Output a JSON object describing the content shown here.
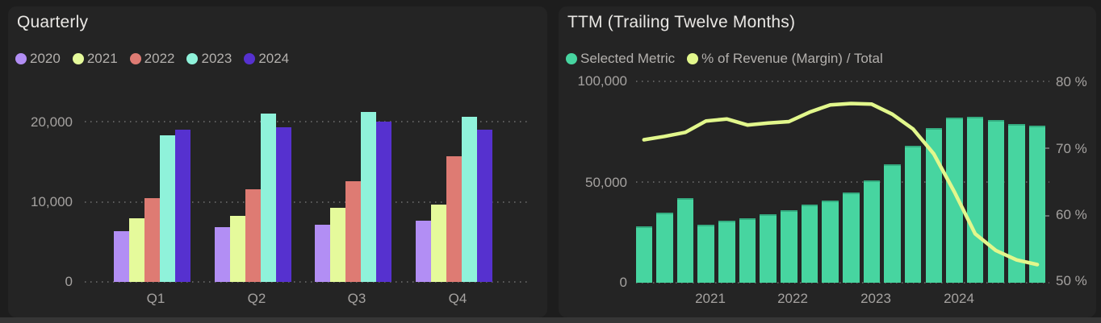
{
  "page": {
    "background": "#1d1d1d",
    "panel_background": "#242424",
    "footer_strip_color": "#363636"
  },
  "left_panel": {
    "title": "Quarterly",
    "legend": [
      {
        "label": "2020",
        "color": "#b28ef4"
      },
      {
        "label": "2021",
        "color": "#e5fa9b"
      },
      {
        "label": "2022",
        "color": "#de7b73"
      },
      {
        "label": "2023",
        "color": "#8ff2da"
      },
      {
        "label": "2024",
        "color": "#5631cf"
      }
    ]
  },
  "right_panel": {
    "title": "TTM (Trailing Twelve Months)",
    "legend": [
      {
        "label": "Selected Metric",
        "color": "#47d5a0"
      },
      {
        "label": "% of Revenue (Margin) / Total",
        "color": "#e2f78c"
      }
    ]
  },
  "chart_data": [
    {
      "panel": "left",
      "type": "bar",
      "title": "Quarterly",
      "categories": [
        "Q1",
        "Q2",
        "Q3",
        "Q4"
      ],
      "series": [
        {
          "name": "2020",
          "color": "#b28ef4",
          "values": [
            6300,
            6800,
            7200,
            7700
          ]
        },
        {
          "name": "2021",
          "color": "#e5fa9b",
          "values": [
            8000,
            8300,
            9300,
            9700
          ]
        },
        {
          "name": "2022",
          "color": "#de7b73",
          "values": [
            10500,
            11600,
            12600,
            15700
          ]
        },
        {
          "name": "2023",
          "color": "#8ff2da",
          "values": [
            18300,
            21000,
            21200,
            20600
          ]
        },
        {
          "name": "2024",
          "color": "#5631cf",
          "values": [
            19000,
            19300,
            20000,
            19000
          ]
        }
      ],
      "yticks": [
        {
          "value": 0,
          "label": "0"
        },
        {
          "value": 10000,
          "label": "10,000"
        },
        {
          "value": 20000,
          "label": "20,000"
        }
      ],
      "ylim": [
        0,
        24000
      ],
      "grid": "dotted-horizontal",
      "legend_position": "top-left"
    },
    {
      "panel": "right",
      "type": "bar+line",
      "title": "TTM (Trailing Twelve Months)",
      "x_labels": [
        {
          "label": "2021",
          "bar_index": 3
        },
        {
          "label": "2022",
          "bar_index": 7
        },
        {
          "label": "2023",
          "bar_index": 11
        },
        {
          "label": "2024",
          "bar_index": 15
        }
      ],
      "bar_series": {
        "name": "Selected Metric",
        "color": "#47d5a0",
        "axis": "left",
        "values": [
          28000,
          35000,
          42000,
          29000,
          31000,
          32000,
          34000,
          36000,
          39000,
          41000,
          45000,
          51000,
          59000,
          68000,
          77000,
          82000,
          82500,
          81000,
          79000,
          78000
        ]
      },
      "line_series": {
        "name": "% of Revenue (Margin) / Total",
        "color": "#e2f78c",
        "axis": "right",
        "values_pct": [
          71.3,
          71.8,
          72.4,
          74.1,
          74.4,
          73.5,
          73.8,
          74.0,
          75.4,
          76.5,
          76.7,
          76.6,
          75.1,
          72.9,
          69.2,
          63.5,
          57.3,
          54.8,
          53.4,
          52.7
        ]
      },
      "left_yticks": [
        {
          "value": 0,
          "label": "0"
        },
        {
          "value": 50000,
          "label": "50,000"
        },
        {
          "value": 100000,
          "label": "100,000"
        }
      ],
      "right_yticks": [
        {
          "value": 50,
          "label": "50 %"
        },
        {
          "value": 60,
          "label": "60 %"
        },
        {
          "value": 70,
          "label": "70 %"
        },
        {
          "value": 80,
          "label": "80 %"
        }
      ],
      "left_ylim": [
        0,
        100000
      ],
      "right_ylim": [
        50,
        80
      ],
      "grid": "dotted-horizontal",
      "legend_position": "top-left"
    }
  ]
}
